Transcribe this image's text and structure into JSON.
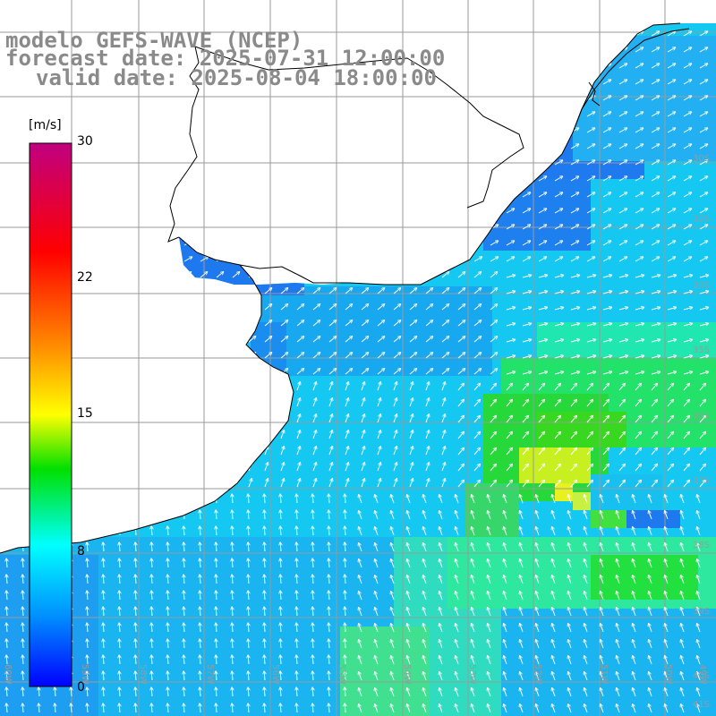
{
  "titles": {
    "model": "modelo GEFS-WAVE (NCEP)",
    "forecast": "forecast date: 2025-07-31 12:00:00",
    "valid": "valid date: 2025-08-04 18:00:00"
  },
  "colorbar": {
    "units": "[m/s]",
    "ticks": [
      "30",
      "22",
      "15",
      "8",
      "0"
    ],
    "tick_values": [
      30,
      22,
      15,
      8,
      0
    ],
    "colors": [
      "#0000ff",
      "#0090ff",
      "#00ffff",
      "#00ff00",
      "#ffff00",
      "#ff8000",
      "#ff0000",
      "#c00080"
    ]
  },
  "axes": {
    "lon_labels": [
      "60W",
      "59W",
      "58W",
      "57W",
      "56W",
      "55W",
      "54W",
      "53W",
      "52W",
      "51W",
      "50W",
      "49W"
    ],
    "lat_labels": [
      "30S",
      "32S",
      "33S",
      "35S",
      "36S",
      "37S",
      "38S",
      "39S",
      "40S",
      "41S"
    ]
  },
  "colors": {
    "title": "#8a8a8a",
    "coast": "#000000",
    "grid": "#9a9a9a",
    "arrow": "#ffffff",
    "land": "#ffffff"
  }
}
